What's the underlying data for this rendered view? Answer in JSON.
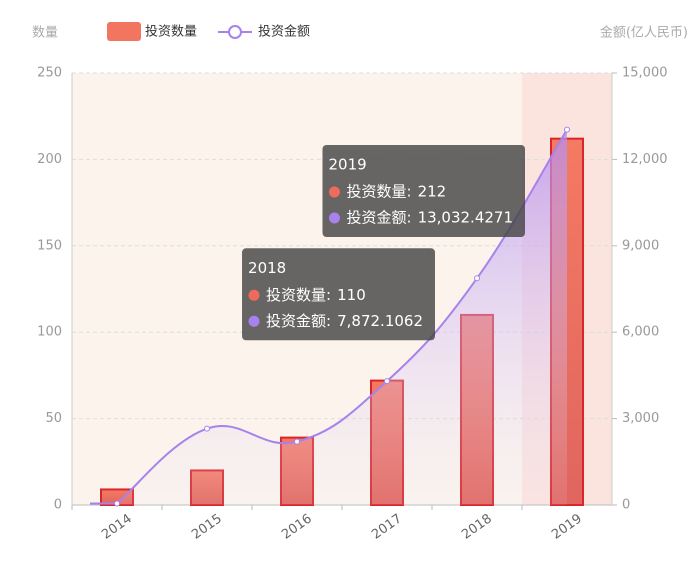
{
  "chart_data": {
    "type": "bar-line",
    "y_label": "数量",
    "y2_label": "金额(亿人民币)",
    "categories": [
      "2014",
      "2015",
      "2016",
      "2017",
      "2018",
      "2019"
    ],
    "series": [
      {
        "name": "投资数量",
        "type": "bar",
        "color": "#ee6b5c",
        "values": [
          9,
          20,
          39,
          72,
          110,
          212
        ]
      },
      {
        "name": "投资金额",
        "type": "line",
        "axis": "y2",
        "color": "#a782ec",
        "values": [
          50,
          2650,
          2200,
          4300,
          7872.1062,
          13032.4271
        ],
        "value_labels": [
          null,
          null,
          null,
          null,
          "7,872.1062",
          "13,032.4271"
        ]
      }
    ],
    "ylim": [
      0,
      250
    ],
    "yticks": [
      0,
      50,
      100,
      150,
      200,
      250
    ],
    "y2lim": [
      0,
      15000
    ],
    "y2ticks": [
      0,
      {
        "value": 3000,
        "label": "3,000"
      },
      {
        "value": 6000,
        "label": "6,000"
      },
      {
        "value": 9000,
        "label": "9,000"
      },
      {
        "value": 12000,
        "label": "12,000"
      },
      {
        "value": 15000,
        "label": "15,000"
      }
    ],
    "grid": true
  }
}
